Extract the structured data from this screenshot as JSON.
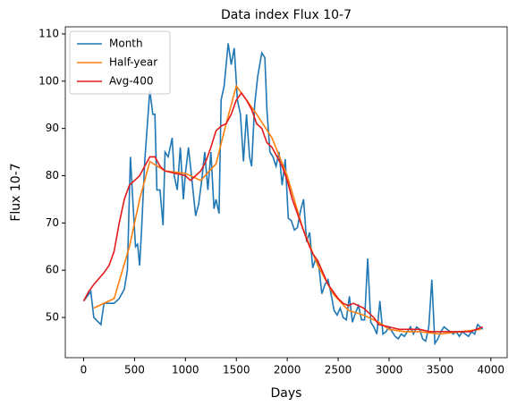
{
  "chart_data": {
    "type": "line",
    "title": "Data index Flux 10-7",
    "xlabel": "Days",
    "ylabel": "Flux 10-7",
    "xlim": [
      -180,
      4160
    ],
    "ylim": [
      41.5,
      111.5
    ],
    "xticks": [
      0,
      500,
      1000,
      1500,
      2000,
      2500,
      3000,
      3500,
      4000
    ],
    "yticks": [
      50,
      60,
      70,
      80,
      90,
      100,
      110
    ],
    "legend": "upper left",
    "grid": false,
    "series": [
      {
        "name": "Month",
        "color": "#1f77b4",
        "x": [
          0,
          70,
          100,
          170,
          200,
          300,
          350,
          400,
          430,
          460,
          480,
          510,
          530,
          550,
          570,
          600,
          630,
          650,
          680,
          700,
          720,
          750,
          780,
          800,
          830,
          870,
          890,
          920,
          950,
          980,
          1000,
          1030,
          1060,
          1100,
          1130,
          1160,
          1190,
          1220,
          1250,
          1280,
          1300,
          1330,
          1350,
          1380,
          1420,
          1450,
          1480,
          1510,
          1540,
          1570,
          1600,
          1630,
          1650,
          1680,
          1710,
          1750,
          1780,
          1800,
          1830,
          1860,
          1890,
          1920,
          1950,
          1980,
          2010,
          2040,
          2070,
          2100,
          2130,
          2160,
          2190,
          2220,
          2250,
          2280,
          2310,
          2340,
          2370,
          2400,
          2430,
          2460,
          2490,
          2520,
          2550,
          2580,
          2610,
          2640,
          2670,
          2700,
          2730,
          2760,
          2790,
          2820,
          2850,
          2880,
          2910,
          2940,
          2970,
          3000,
          3030,
          3060,
          3090,
          3120,
          3150,
          3180,
          3210,
          3240,
          3270,
          3300,
          3330,
          3360,
          3390,
          3420,
          3450,
          3480,
          3510,
          3540,
          3570,
          3600,
          3630,
          3660,
          3690,
          3720,
          3750,
          3780,
          3810,
          3840,
          3870,
          3920
        ],
        "values": [
          53.5,
          55.5,
          50,
          48.5,
          53,
          53,
          54,
          56,
          60,
          84,
          76,
          65,
          65.5,
          61,
          69,
          83,
          92,
          98,
          93,
          93,
          77,
          77,
          69.5,
          85,
          84,
          88,
          80,
          77,
          86,
          75,
          80.5,
          86,
          80,
          71.5,
          74,
          79,
          85,
          77,
          85,
          73,
          75,
          72,
          96,
          99,
          108,
          103.5,
          107,
          96,
          93,
          83,
          93,
          84,
          82,
          95,
          101,
          106,
          105,
          94,
          85,
          84,
          82,
          85,
          78,
          83.5,
          71,
          70.5,
          68.5,
          69,
          72.5,
          75,
          66,
          68,
          60.5,
          62.5,
          61,
          55,
          57,
          58,
          55,
          51.5,
          50.5,
          52,
          50,
          49.5,
          54.5,
          49,
          51,
          52.5,
          49.5,
          49.5,
          62.5,
          49,
          48,
          46.5,
          53.5,
          46.5,
          47,
          48,
          47,
          46,
          45.5,
          46.5,
          46,
          47,
          48,
          46.5,
          48,
          47.5,
          45.5,
          45,
          48,
          58,
          44.5,
          45.5,
          47,
          48,
          47.5,
          47,
          46.5,
          47,
          46,
          47,
          46.5,
          46,
          47,
          46.5,
          48.5,
          47.5
        ]
      },
      {
        "name": "Half-year",
        "color": "#ff7f0e",
        "x": [
          100,
          300,
          450,
          550,
          650,
          800,
          1000,
          1150,
          1300,
          1400,
          1500,
          1600,
          1700,
          1850,
          2000,
          2150,
          2300,
          2450,
          2600,
          2750,
          2900,
          3000,
          3150,
          3300,
          3500,
          3700,
          3900
        ],
        "values": [
          52,
          54,
          65,
          75,
          83,
          81,
          80.5,
          79,
          82.5,
          91,
          99,
          96,
          93,
          88,
          80,
          69,
          61,
          55,
          51.5,
          50.5,
          49,
          47.5,
          47,
          47,
          46.5,
          47,
          47.5
        ]
      },
      {
        "name": "Avg-400",
        "color": "#e41a1c",
        "x": [
          0,
          50,
          100,
          200,
          250,
          300,
          350,
          400,
          450,
          500,
          550,
          600,
          650,
          700,
          750,
          800,
          900,
          1000,
          1050,
          1100,
          1150,
          1200,
          1250,
          1300,
          1350,
          1400,
          1450,
          1500,
          1550,
          1600,
          1650,
          1700,
          1750,
          1800,
          1850,
          1900,
          1950,
          2000,
          2050,
          2100,
          2150,
          2200,
          2250,
          2300,
          2350,
          2400,
          2450,
          2500,
          2550,
          2600,
          2650,
          2700,
          2750,
          2800,
          2850,
          2900,
          3000,
          3100,
          3200,
          3300,
          3400,
          3500,
          3600,
          3700,
          3800,
          3920
        ],
        "values": [
          53.5,
          55.5,
          57,
          59.5,
          61,
          64,
          70,
          75,
          78,
          79,
          80,
          82,
          84,
          84,
          82,
          81,
          80.5,
          80,
          79,
          80,
          81,
          83,
          86,
          89.5,
          90.5,
          91,
          93,
          96,
          97.5,
          96,
          94,
          91,
          90,
          87,
          86,
          84,
          82,
          79,
          75,
          72,
          69,
          66,
          63.5,
          62,
          59.5,
          57,
          55.5,
          54,
          53,
          52.5,
          53,
          52.5,
          52,
          51,
          50,
          48.5,
          48,
          47.5,
          47.5,
          47.5,
          47,
          47,
          47,
          47,
          47,
          48
        ]
      }
    ]
  }
}
